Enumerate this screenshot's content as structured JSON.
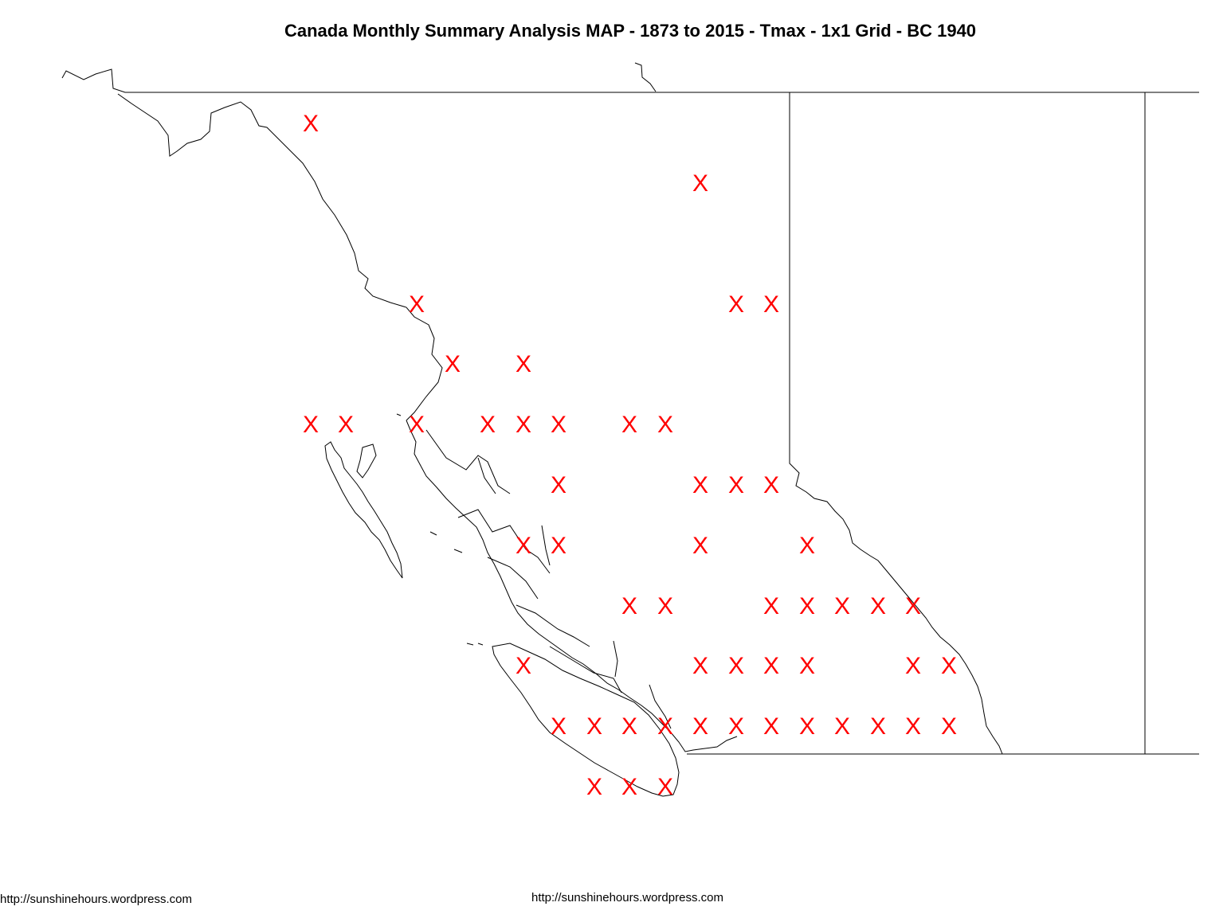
{
  "title": "Canada Monthly Summary Analysis MAP - 1873 to 2015 - Tmax - 1x1 Grid - BC 1940",
  "credit_left": "http://sunshinehours.wordpress.com",
  "credit_center": "http://sunshinehours.wordpress.com",
  "marker": {
    "symbol": "X",
    "color": "#ff0000"
  },
  "line_color": "#000000"
}
